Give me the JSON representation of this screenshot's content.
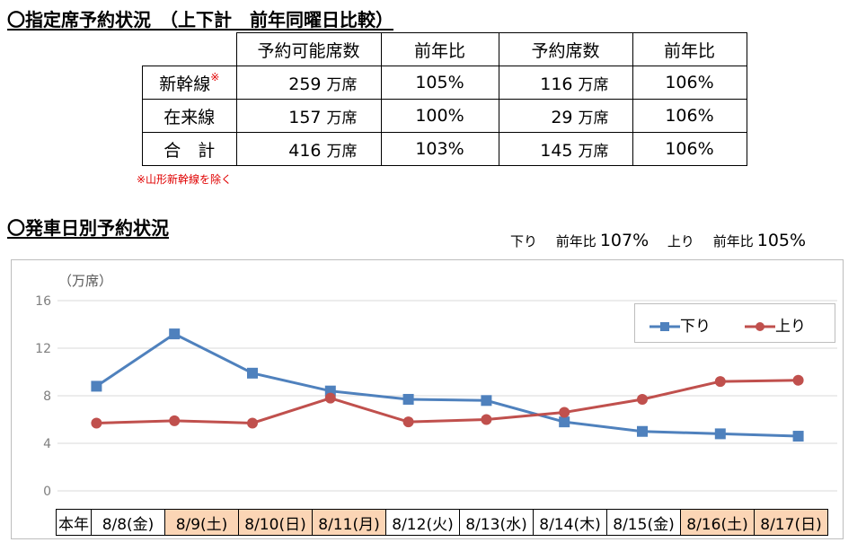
{
  "section1_title": "〇指定席予約状況　（上下計　前年同曜日比較）",
  "section2_title": "〇発車日別予約状況",
  "table": {
    "headers": [
      "予約可能席数",
      "前年比",
      "予約席数",
      "前年比"
    ],
    "unit": "万席",
    "rows": [
      {
        "label": "新幹線",
        "note_mark": "※",
        "available": "259",
        "available_yoy": "105%",
        "reserved": "116",
        "reserved_yoy": "106%"
      },
      {
        "label": "在来線",
        "note_mark": "",
        "available": "157",
        "available_yoy": "100%",
        "reserved": "29",
        "reserved_yoy": "106%"
      },
      {
        "label": "合　計",
        "note_mark": "",
        "available": "416",
        "available_yoy": "103%",
        "reserved": "145",
        "reserved_yoy": "106%"
      }
    ],
    "footnote": "※山形新幹線を除く"
  },
  "yoy_summary": {
    "down_label": "下り",
    "down_text": "前年比",
    "down_value": "107%",
    "up_label": "上り",
    "up_text": "前年比",
    "up_value": "105%"
  },
  "chart_data": {
    "type": "line",
    "unit_label": "（万席）",
    "yticks": [
      0,
      4,
      8,
      12,
      16
    ],
    "ylim": [
      0,
      16
    ],
    "grid": "horizontal",
    "legend_position": "top-right",
    "row_header": "本年",
    "categories": [
      "8/8(金)",
      "8/9(土)",
      "8/10(日)",
      "8/11(月)",
      "8/12(火)",
      "8/13(水)",
      "8/14(木)",
      "8/15(金)",
      "8/16(土)",
      "8/17(日)"
    ],
    "highlighted_dates": [
      1,
      2,
      3,
      8,
      9
    ],
    "highlight_color": "#fbd5b5",
    "series": [
      {
        "name": "下り",
        "color": "#4f81bd",
        "marker": "square",
        "values": [
          8.8,
          13.2,
          9.9,
          8.4,
          7.7,
          7.6,
          5.8,
          5.0,
          4.8,
          4.6
        ]
      },
      {
        "name": "上り",
        "color": "#c0504d",
        "marker": "circle",
        "values": [
          5.7,
          5.9,
          5.7,
          7.8,
          5.8,
          6.0,
          6.6,
          7.7,
          9.2,
          9.3
        ]
      }
    ]
  }
}
